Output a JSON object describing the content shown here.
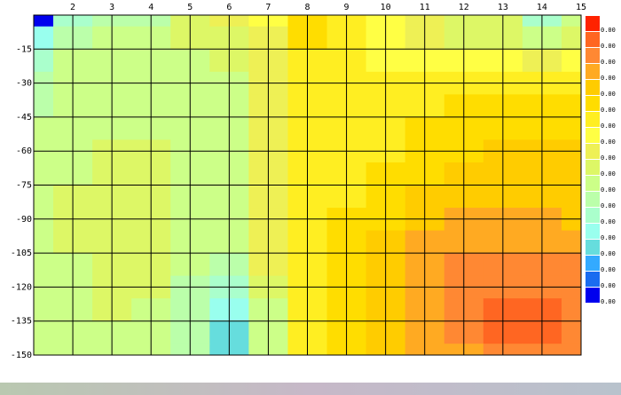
{
  "chart_data": {
    "type": "contour",
    "x": [
      1,
      2,
      3,
      4,
      5,
      6,
      7,
      8,
      9,
      10,
      11,
      12,
      13,
      14,
      15
    ],
    "y": [
      0,
      -10,
      -20,
      -30,
      -40,
      -50,
      -60,
      -70,
      -80,
      -90,
      -100,
      -110,
      -120,
      -130,
      -140,
      -150
    ],
    "z": [
      [
        0.0001,
        0.0011,
        0.0013,
        0.0013,
        0.0017,
        0.0019,
        0.0021,
        0.0025,
        0.0023,
        0.0021,
        0.0019,
        0.0017,
        0.0017,
        0.0011,
        0.0015
      ],
      [
        0.0009,
        0.0013,
        0.0015,
        0.0015,
        0.0017,
        0.0017,
        0.0019,
        0.0025,
        0.0023,
        0.0021,
        0.0019,
        0.0017,
        0.0017,
        0.0015,
        0.0017
      ],
      [
        0.0011,
        0.0015,
        0.0015,
        0.0015,
        0.0015,
        0.0017,
        0.0019,
        0.0023,
        0.0023,
        0.0021,
        0.0021,
        0.0021,
        0.0021,
        0.0019,
        0.0021
      ],
      [
        0.0013,
        0.0015,
        0.0015,
        0.0015,
        0.0015,
        0.0015,
        0.0019,
        0.0023,
        0.0023,
        0.0023,
        0.0023,
        0.0023,
        0.0023,
        0.0023,
        0.0023
      ],
      [
        0.0013,
        0.0015,
        0.0015,
        0.0015,
        0.0015,
        0.0015,
        0.0019,
        0.0023,
        0.0023,
        0.0023,
        0.0023,
        0.0025,
        0.0025,
        0.0025,
        0.0025
      ],
      [
        0.0015,
        0.0015,
        0.0015,
        0.0015,
        0.0015,
        0.0015,
        0.0019,
        0.0023,
        0.0023,
        0.0023,
        0.0025,
        0.0025,
        0.0025,
        0.0025,
        0.0025
      ],
      [
        0.0015,
        0.0015,
        0.0017,
        0.0017,
        0.0015,
        0.0015,
        0.0019,
        0.0023,
        0.0023,
        0.0023,
        0.0025,
        0.0025,
        0.0027,
        0.0027,
        0.0027
      ],
      [
        0.0015,
        0.0015,
        0.0017,
        0.0017,
        0.0015,
        0.0015,
        0.0019,
        0.0023,
        0.0023,
        0.0025,
        0.0025,
        0.0027,
        0.0027,
        0.0027,
        0.0027
      ],
      [
        0.0015,
        0.0017,
        0.0017,
        0.0017,
        0.0015,
        0.0015,
        0.0019,
        0.0023,
        0.0023,
        0.0025,
        0.0027,
        0.0027,
        0.0027,
        0.0027,
        0.0027
      ],
      [
        0.0015,
        0.0017,
        0.0017,
        0.0017,
        0.0015,
        0.0015,
        0.0019,
        0.0023,
        0.0025,
        0.0025,
        0.0027,
        0.0029,
        0.0029,
        0.0029,
        0.0027
      ],
      [
        0.0015,
        0.0017,
        0.0017,
        0.0017,
        0.0015,
        0.0015,
        0.0019,
        0.0023,
        0.0025,
        0.0027,
        0.0029,
        0.0029,
        0.0029,
        0.0029,
        0.0029
      ],
      [
        0.0015,
        0.0015,
        0.0017,
        0.0017,
        0.0015,
        0.0013,
        0.0019,
        0.0023,
        0.0025,
        0.0027,
        0.0029,
        0.0031,
        0.0031,
        0.0031,
        0.0031
      ],
      [
        0.0015,
        0.0015,
        0.0017,
        0.0017,
        0.0013,
        0.0011,
        0.0017,
        0.0023,
        0.0025,
        0.0027,
        0.0029,
        0.0031,
        0.0031,
        0.0031,
        0.0031
      ],
      [
        0.0015,
        0.0015,
        0.0017,
        0.0015,
        0.0013,
        0.0009,
        0.0015,
        0.0023,
        0.0025,
        0.0027,
        0.0029,
        0.0031,
        0.0033,
        0.0033,
        0.0031
      ],
      [
        0.0015,
        0.0015,
        0.0015,
        0.0015,
        0.0013,
        0.0007,
        0.0015,
        0.0023,
        0.0025,
        0.0027,
        0.0029,
        0.0031,
        0.0033,
        0.0033,
        0.0031
      ],
      [
        0.0015,
        0.0015,
        0.0015,
        0.0015,
        0.0013,
        0.0007,
        0.0015,
        0.0023,
        0.0025,
        0.0027,
        0.0029,
        0.0029,
        0.0031,
        0.0031,
        0.0031
      ]
    ],
    "xlim": [
      1,
      15
    ],
    "ylim": [
      -150,
      0
    ],
    "xticks": [
      2,
      3,
      4,
      5,
      6,
      7,
      8,
      9,
      10,
      11,
      12,
      13,
      14,
      15
    ],
    "yticks": [
      -15,
      -30,
      -45,
      -60,
      -75,
      -90,
      -105,
      -120,
      -135,
      -150
    ],
    "grid": true,
    "colorbar": {
      "colors": [
        "#0000ee",
        "#1a6cf0",
        "#33aaff",
        "#66dddd",
        "#99ffee",
        "#aaffcc",
        "#bbffaa",
        "#ccff88",
        "#ddf766",
        "#eef055",
        "#ffff44",
        "#ffee22",
        "#ffdd00",
        "#ffcc00",
        "#ffaa22",
        "#ff8833",
        "#ff6622",
        "#ff2200"
      ],
      "ticks": [
        {
          "value": 0,
          "label": "0.00"
        },
        {
          "value": 0.0002,
          "label": "0.00"
        },
        {
          "value": 0.0004,
          "label": "0.00"
        },
        {
          "value": 0.0006,
          "label": "0.00"
        },
        {
          "value": 0.0008,
          "label": "0.00"
        },
        {
          "value": 0.001,
          "label": "0.00"
        },
        {
          "value": 0.0012,
          "label": "0.00"
        },
        {
          "value": 0.0014,
          "label": "0.00"
        },
        {
          "value": 0.0016,
          "label": "0.00"
        },
        {
          "value": 0.0018,
          "label": "0.00"
        },
        {
          "value": 0.002,
          "label": "0.00"
        },
        {
          "value": 0.0022,
          "label": "0.00"
        },
        {
          "value": 0.0024,
          "label": "0.00"
        },
        {
          "value": 0.0026,
          "label": "0.00"
        },
        {
          "value": 0.0028,
          "label": "0.00"
        },
        {
          "value": 0.003,
          "label": "0.00"
        },
        {
          "value": 0.0032,
          "label": "0.00"
        },
        {
          "value": 0.0034,
          "label": "0.00"
        }
      ]
    }
  }
}
